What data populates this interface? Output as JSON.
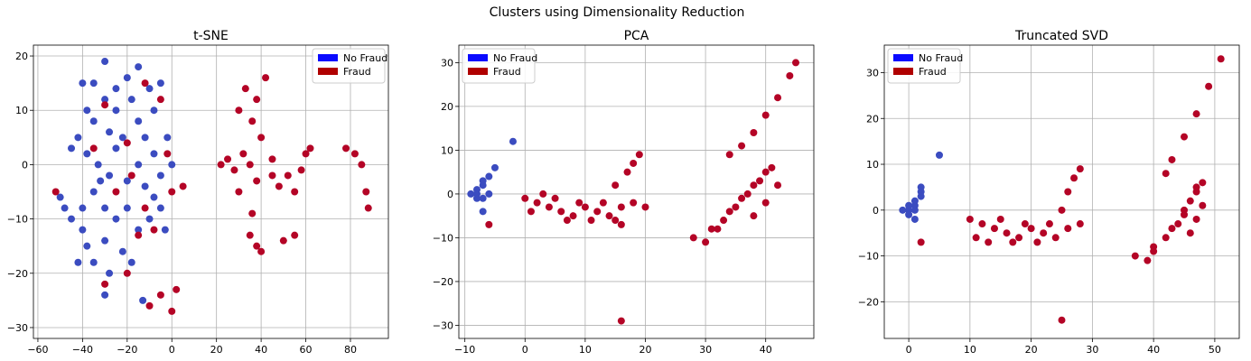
{
  "figure": {
    "suptitle": "Clusters using Dimensionality Reduction"
  },
  "colors": {
    "no_fraud_legend": "#0a0aff",
    "fraud_legend": "#b00000",
    "no_fraud_points": "#3b4cc0",
    "fraud_points": "#b40426"
  },
  "chart_data": [
    {
      "type": "scatter",
      "title": "t-SNE",
      "xlabel": "",
      "ylabel": "",
      "xlim": [
        -62,
        97
      ],
      "ylim": [
        -32,
        22
      ],
      "xticks": [
        -60,
        -40,
        -20,
        0,
        20,
        40,
        60,
        80
      ],
      "yticks": [
        -30,
        -20,
        -10,
        0,
        10,
        20
      ],
      "grid": true,
      "legend": {
        "placement": "top-right",
        "entries": [
          "No Fraud",
          "Fraud"
        ]
      },
      "series": [
        {
          "name": "No Fraud",
          "points": [
            [
              -40,
              15
            ],
            [
              -30,
              19
            ],
            [
              -20,
              16
            ],
            [
              -38,
              10
            ],
            [
              -35,
              8
            ],
            [
              -30,
              12
            ],
            [
              -28,
              6
            ],
            [
              -25,
              10
            ],
            [
              -22,
              5
            ],
            [
              -18,
              12
            ],
            [
              -15,
              8
            ],
            [
              -10,
              14
            ],
            [
              -8,
              10
            ],
            [
              -5,
              15
            ],
            [
              -42,
              5
            ],
            [
              -38,
              2
            ],
            [
              -33,
              0
            ],
            [
              -28,
              -2
            ],
            [
              -25,
              3
            ],
            [
              -20,
              -3
            ],
            [
              -15,
              0
            ],
            [
              -12,
              5
            ],
            [
              -8,
              2
            ],
            [
              -5,
              -2
            ],
            [
              -2,
              5
            ],
            [
              0,
              0
            ],
            [
              -48,
              -8
            ],
            [
              -45,
              -10
            ],
            [
              -50,
              -6
            ],
            [
              -40,
              -12
            ],
            [
              -38,
              -15
            ],
            [
              -35,
              -18
            ],
            [
              -30,
              -14
            ],
            [
              -28,
              -20
            ],
            [
              -22,
              -16
            ],
            [
              -18,
              -18
            ],
            [
              -15,
              -12
            ],
            [
              -10,
              -10
            ],
            [
              -8,
              -6
            ],
            [
              -5,
              -8
            ],
            [
              -3,
              -12
            ],
            [
              -35,
              -5
            ],
            [
              -30,
              -8
            ],
            [
              -25,
              -10
            ],
            [
              -20,
              -8
            ],
            [
              -42,
              -18
            ],
            [
              -40,
              -8
            ],
            [
              -32,
              -3
            ],
            [
              -12,
              -4
            ],
            [
              -45,
              3
            ],
            [
              -15,
              18
            ],
            [
              -35,
              15
            ],
            [
              -25,
              14
            ],
            [
              -13,
              -25
            ],
            [
              -30,
              -24
            ]
          ]
        },
        {
          "name": "Fraud",
          "points": [
            [
              30,
              10
            ],
            [
              33,
              14
            ],
            [
              36,
              8
            ],
            [
              38,
              12
            ],
            [
              40,
              5
            ],
            [
              42,
              16
            ],
            [
              32,
              2
            ],
            [
              35,
              0
            ],
            [
              38,
              -3
            ],
            [
              45,
              1
            ],
            [
              48,
              -4
            ],
            [
              52,
              -2
            ],
            [
              55,
              -5
            ],
            [
              58,
              -1
            ],
            [
              62,
              3
            ],
            [
              55,
              -13
            ],
            [
              50,
              -14
            ],
            [
              35,
              -13
            ],
            [
              38,
              -15
            ],
            [
              36,
              -9
            ],
            [
              40,
              -16
            ],
            [
              78,
              3
            ],
            [
              82,
              2
            ],
            [
              85,
              0
            ],
            [
              87,
              -5
            ],
            [
              88,
              -8
            ],
            [
              22,
              0
            ],
            [
              25,
              1
            ],
            [
              28,
              -1
            ],
            [
              -10,
              -26
            ],
            [
              -5,
              -24
            ],
            [
              0,
              -27
            ],
            [
              2,
              -23
            ],
            [
              -30,
              -22
            ],
            [
              -20,
              -20
            ],
            [
              -52,
              -5
            ],
            [
              -35,
              3
            ],
            [
              -12,
              -8
            ],
            [
              -8,
              -12
            ],
            [
              -15,
              -13
            ],
            [
              0,
              -5
            ],
            [
              -2,
              2
            ],
            [
              5,
              -4
            ],
            [
              -30,
              11
            ],
            [
              -20,
              4
            ],
            [
              -12,
              15
            ],
            [
              -5,
              12
            ],
            [
              -25,
              -5
            ],
            [
              -18,
              -2
            ],
            [
              30,
              -5
            ],
            [
              45,
              -2
            ],
            [
              60,
              2
            ]
          ]
        }
      ]
    },
    {
      "type": "scatter",
      "title": "PCA",
      "xlabel": "",
      "ylabel": "",
      "xlim": [
        -11,
        48
      ],
      "ylim": [
        -33,
        34
      ],
      "xticks": [
        -10,
        0,
        10,
        20,
        30,
        40
      ],
      "yticks": [
        -30,
        -20,
        -10,
        0,
        10,
        20,
        30
      ],
      "grid": true,
      "legend": {
        "placement": "top-left",
        "entries": [
          "No Fraud",
          "Fraud"
        ]
      },
      "series": [
        {
          "name": "No Fraud",
          "points": [
            [
              -8,
              0
            ],
            [
              -7,
              2
            ],
            [
              -6,
              4
            ],
            [
              -7,
              -1
            ],
            [
              -8,
              1
            ],
            [
              -6,
              0
            ],
            [
              -5,
              6
            ],
            [
              -7,
              -4
            ],
            [
              -2,
              12
            ],
            [
              -8,
              -1
            ],
            [
              -9,
              0
            ],
            [
              -7,
              3
            ]
          ]
        },
        {
          "name": "Fraud",
          "points": [
            [
              0,
              -1
            ],
            [
              2,
              -2
            ],
            [
              4,
              -3
            ],
            [
              6,
              -4
            ],
            [
              8,
              -5
            ],
            [
              10,
              -3
            ],
            [
              12,
              -4
            ],
            [
              14,
              -5
            ],
            [
              16,
              -3
            ],
            [
              18,
              -2
            ],
            [
              20,
              -3
            ],
            [
              3,
              0
            ],
            [
              5,
              -1
            ],
            [
              7,
              -6
            ],
            [
              9,
              -2
            ],
            [
              11,
              -6
            ],
            [
              13,
              -2
            ],
            [
              15,
              -6
            ],
            [
              1,
              -4
            ],
            [
              16,
              -7
            ],
            [
              15,
              2
            ],
            [
              17,
              5
            ],
            [
              18,
              7
            ],
            [
              19,
              9
            ],
            [
              16,
              -29
            ],
            [
              -6,
              -7
            ],
            [
              28,
              -10
            ],
            [
              30,
              -11
            ],
            [
              31,
              -8
            ],
            [
              33,
              -6
            ],
            [
              35,
              -3
            ],
            [
              36,
              -1
            ],
            [
              38,
              2
            ],
            [
              40,
              5
            ],
            [
              41,
              6
            ],
            [
              38,
              -5
            ],
            [
              40,
              -2
            ],
            [
              42,
              2
            ],
            [
              36,
              11
            ],
            [
              38,
              14
            ],
            [
              40,
              18
            ],
            [
              42,
              22
            ],
            [
              44,
              27
            ],
            [
              45,
              30
            ],
            [
              34,
              9
            ],
            [
              32,
              -8
            ],
            [
              34,
              -4
            ],
            [
              37,
              0
            ],
            [
              39,
              3
            ]
          ]
        }
      ]
    },
    {
      "type": "scatter",
      "title": "Truncated SVD",
      "xlabel": "",
      "ylabel": "",
      "xlim": [
        -4,
        54
      ],
      "ylim": [
        -28,
        36
      ],
      "xticks": [
        0,
        10,
        20,
        30,
        40,
        50
      ],
      "yticks": [
        -20,
        -10,
        0,
        10,
        20,
        30
      ],
      "grid": true,
      "legend": {
        "placement": "top-left",
        "entries": [
          "No Fraud",
          "Fraud"
        ]
      },
      "series": [
        {
          "name": "No Fraud",
          "points": [
            [
              0,
              0
            ],
            [
              1,
              1
            ],
            [
              2,
              3
            ],
            [
              0,
              -1
            ],
            [
              1,
              2
            ],
            [
              -1,
              0
            ],
            [
              2,
              5
            ],
            [
              1,
              -2
            ],
            [
              5,
              12
            ],
            [
              0,
              1
            ],
            [
              2,
              4
            ],
            [
              1,
              0
            ]
          ]
        },
        {
          "name": "Fraud",
          "points": [
            [
              10,
              -2
            ],
            [
              12,
              -3
            ],
            [
              14,
              -4
            ],
            [
              16,
              -5
            ],
            [
              18,
              -6
            ],
            [
              20,
              -4
            ],
            [
              22,
              -5
            ],
            [
              24,
              -6
            ],
            [
              26,
              -4
            ],
            [
              28,
              -3
            ],
            [
              11,
              -6
            ],
            [
              13,
              -7
            ],
            [
              15,
              -2
            ],
            [
              17,
              -7
            ],
            [
              19,
              -3
            ],
            [
              21,
              -7
            ],
            [
              23,
              -3
            ],
            [
              25,
              0
            ],
            [
              26,
              4
            ],
            [
              27,
              7
            ],
            [
              28,
              9
            ],
            [
              25,
              -24
            ],
            [
              2,
              -7
            ],
            [
              37,
              -10
            ],
            [
              39,
              -11
            ],
            [
              40,
              -8
            ],
            [
              42,
              -6
            ],
            [
              44,
              -3
            ],
            [
              45,
              -1
            ],
            [
              46,
              2
            ],
            [
              47,
              4
            ],
            [
              48,
              6
            ],
            [
              46,
              -5
            ],
            [
              47,
              -2
            ],
            [
              48,
              1
            ],
            [
              43,
              11
            ],
            [
              45,
              16
            ],
            [
              47,
              21
            ],
            [
              49,
              27
            ],
            [
              51,
              33
            ],
            [
              42,
              8
            ],
            [
              40,
              -9
            ],
            [
              43,
              -4
            ],
            [
              45,
              0
            ],
            [
              47,
              5
            ]
          ]
        }
      ]
    }
  ]
}
